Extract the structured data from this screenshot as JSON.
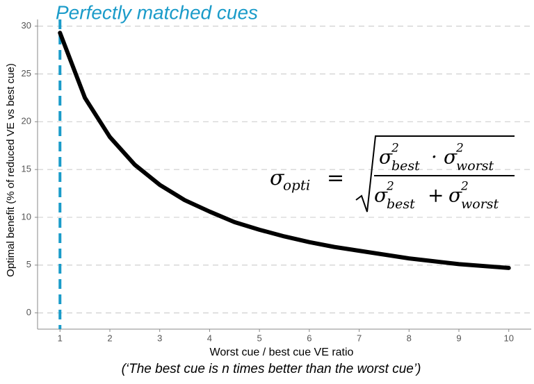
{
  "chart_data": {
    "type": "line",
    "title": "Perfectly matched cues",
    "x_label": "Worst cue / best cue VE ratio",
    "y_label": "Optimal benefit (% of reduced VE vs best cue)",
    "caption": "(‘The best cue is n times better than the worst cue’)",
    "x": [
      1,
      1.5,
      2,
      2.5,
      3,
      3.5,
      4,
      4.5,
      5,
      5.5,
      6,
      6.5,
      7,
      7.5,
      8,
      8.5,
      9,
      9.5,
      10
    ],
    "series": [
      {
        "name": "Optimal benefit",
        "color": "#000000",
        "values": [
          29.3,
          22.5,
          18.4,
          15.5,
          13.4,
          11.8,
          10.6,
          9.5,
          8.7,
          8.0,
          7.4,
          6.9,
          6.5,
          6.1,
          5.7,
          5.4,
          5.1,
          4.9,
          4.7
        ]
      }
    ],
    "reference_x": 1,
    "reference_color": "#1a9bc9",
    "xlim": [
      0.55,
      10.45
    ],
    "ylim": [
      -1.7,
      30.7
    ],
    "xticks": [
      1,
      2,
      3,
      4,
      5,
      6,
      7,
      8,
      9,
      10
    ],
    "yticks": [
      0,
      5,
      10,
      15,
      20,
      25,
      30
    ],
    "grid": true,
    "formula": {
      "sigma": "σ",
      "opti": "opti",
      "equals": "=",
      "best": "best",
      "worst": "worst",
      "square": "2",
      "times": "·",
      "plus": "+"
    }
  }
}
